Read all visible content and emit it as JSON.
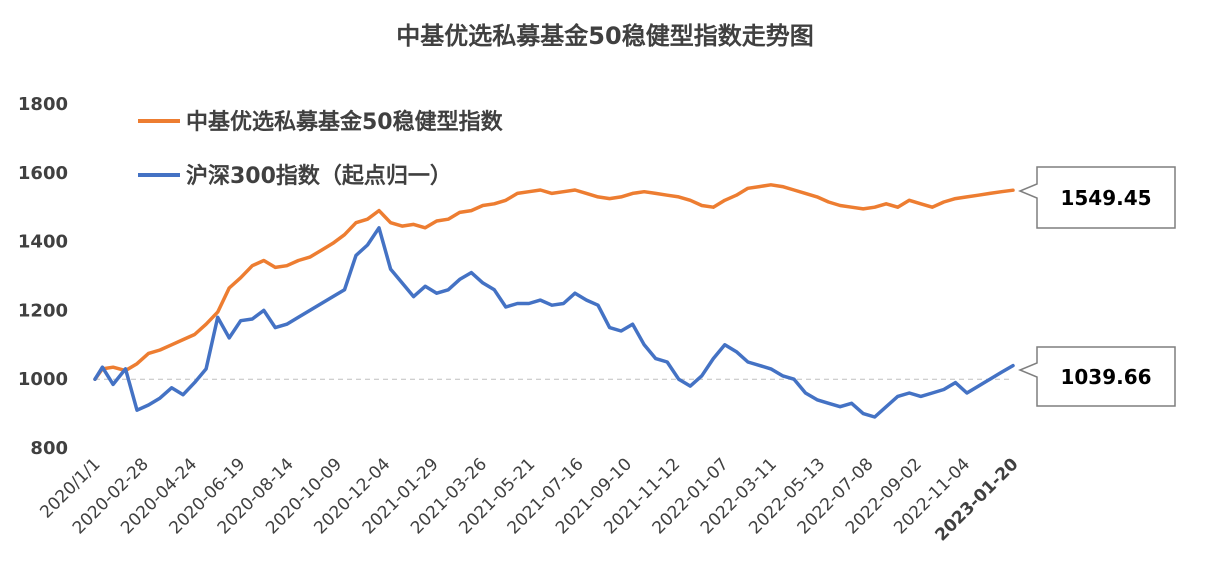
{
  "chart_data": {
    "type": "line",
    "title": "中基优选私募基金50稳健型指数走势图",
    "xlabel": "",
    "ylabel": "",
    "ylim": [
      800,
      1800
    ],
    "yticks": [
      800,
      1000,
      1200,
      1400,
      1600,
      1800
    ],
    "grid": false,
    "legend_position": "top-left",
    "baseline": 1000,
    "x_tick_labels": [
      "2020/1/1",
      "2020-02-28",
      "2020-04-24",
      "2020-06-19",
      "2020-08-14",
      "2020-10-09",
      "2020-12-04",
      "2021-01-29",
      "2021-03-26",
      "2021-05-21",
      "2021-07-16",
      "2021-09-10",
      "2021-11-12",
      "2022-01-07",
      "2022-03-11",
      "2022-05-13",
      "2022-07-08",
      "2022-09-02",
      "2022-11-04",
      "2023-01-20"
    ],
    "x": [
      "2020/1/1",
      "2020-01-10",
      "2020-01-23",
      "2020-02-07",
      "2020-02-21",
      "2020-03-06",
      "2020-03-20",
      "2020-04-03",
      "2020-04-17",
      "2020-05-01",
      "2020-05-15",
      "2020-05-29",
      "2020-06-12",
      "2020-06-26",
      "2020-07-10",
      "2020-07-24",
      "2020-08-07",
      "2020-08-21",
      "2020-09-04",
      "2020-09-18",
      "2020-10-02",
      "2020-10-16",
      "2020-10-30",
      "2020-11-13",
      "2020-11-27",
      "2020-12-11",
      "2020-12-25",
      "2021-01-08",
      "2021-01-22",
      "2021-02-05",
      "2021-02-19",
      "2021-03-05",
      "2021-03-19",
      "2021-04-02",
      "2021-04-16",
      "2021-04-30",
      "2021-05-14",
      "2021-05-28",
      "2021-06-11",
      "2021-06-25",
      "2021-07-09",
      "2021-07-23",
      "2021-08-06",
      "2021-08-20",
      "2021-09-03",
      "2021-09-17",
      "2021-10-01",
      "2021-10-15",
      "2021-10-29",
      "2021-11-12",
      "2021-11-26",
      "2021-12-10",
      "2021-12-24",
      "2022-01-07",
      "2022-01-21",
      "2022-02-04",
      "2022-02-18",
      "2022-03-04",
      "2022-03-18",
      "2022-04-01",
      "2022-04-15",
      "2022-04-29",
      "2022-05-13",
      "2022-05-27",
      "2022-06-10",
      "2022-06-24",
      "2022-07-08",
      "2022-07-22",
      "2022-08-05",
      "2022-08-19",
      "2022-09-02",
      "2022-09-16",
      "2022-09-30",
      "2022-10-14",
      "2022-10-28",
      "2022-11-11",
      "2022-11-25",
      "2022-12-09",
      "2022-12-23",
      "2023-01-06",
      "2023-01-20"
    ],
    "series": [
      {
        "name": "中基优选私募基金50稳健型指数",
        "color": "#ED7D31",
        "values": [
          1000,
          1030,
          1035,
          1025,
          1045,
          1075,
          1085,
          1100,
          1115,
          1130,
          1160,
          1195,
          1265,
          1295,
          1330,
          1345,
          1325,
          1330,
          1345,
          1355,
          1375,
          1395,
          1420,
          1455,
          1465,
          1490,
          1455,
          1445,
          1450,
          1440,
          1460,
          1465,
          1485,
          1490,
          1505,
          1510,
          1520,
          1540,
          1545,
          1550,
          1540,
          1545,
          1550,
          1540,
          1530,
          1525,
          1530,
          1540,
          1545,
          1540,
          1535,
          1530,
          1520,
          1505,
          1500,
          1520,
          1535,
          1555,
          1560,
          1565,
          1560,
          1550,
          1540,
          1530,
          1515,
          1505,
          1500,
          1495,
          1500,
          1510,
          1500,
          1520,
          1510,
          1500,
          1515,
          1525,
          1530,
          1535,
          1540,
          1545,
          1549.45
        ]
      },
      {
        "name": "沪深300指数（起点归一）",
        "color": "#4472C4",
        "values": [
          1000,
          1035,
          985,
          1030,
          910,
          925,
          945,
          975,
          955,
          990,
          1030,
          1180,
          1120,
          1170,
          1175,
          1200,
          1150,
          1160,
          1180,
          1200,
          1220,
          1240,
          1260,
          1360,
          1390,
          1440,
          1320,
          1280,
          1240,
          1270,
          1250,
          1260,
          1290,
          1310,
          1280,
          1260,
          1210,
          1220,
          1220,
          1230,
          1215,
          1220,
          1250,
          1230,
          1215,
          1150,
          1140,
          1160,
          1100,
          1060,
          1050,
          1000,
          980,
          1010,
          1060,
          1100,
          1080,
          1050,
          1040,
          1030,
          1010,
          1000,
          960,
          940,
          930,
          920,
          930,
          900,
          890,
          920,
          950,
          960,
          950,
          960,
          970,
          990,
          960,
          980,
          1000,
          1020,
          1039.66
        ]
      }
    ],
    "callouts": [
      "1549.45",
      "1039.66"
    ]
  }
}
